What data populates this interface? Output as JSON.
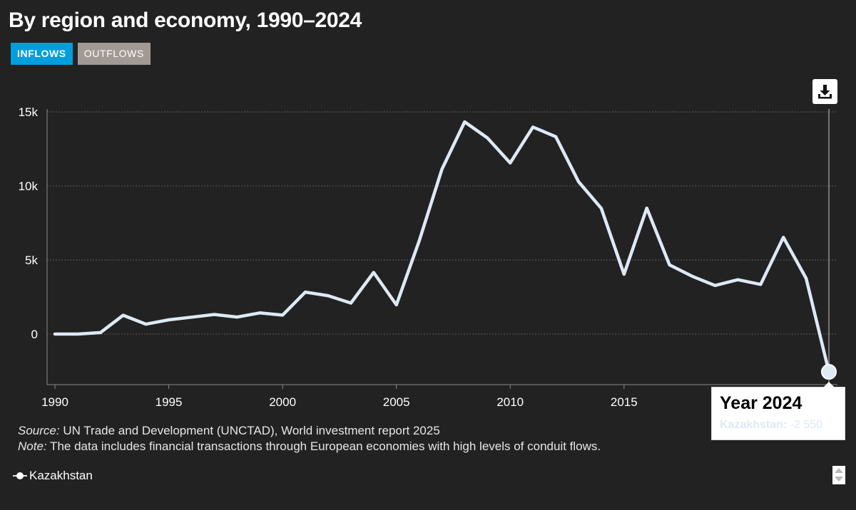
{
  "title": "By region and economy, 1990–2024",
  "tabs": [
    {
      "label": "INFLOWS",
      "active": true
    },
    {
      "label": "OUTFLOWS",
      "active": false
    }
  ],
  "download_icon": "download-icon",
  "chart_data": {
    "type": "line",
    "title": "By region and economy, 1990–2024",
    "xlabel": "",
    "ylabel": "",
    "x": [
      1990,
      1991,
      1992,
      1993,
      1994,
      1995,
      1996,
      1997,
      1998,
      1999,
      2000,
      2001,
      2002,
      2003,
      2004,
      2005,
      2006,
      2007,
      2008,
      2009,
      2010,
      2011,
      2012,
      2013,
      2014,
      2015,
      2016,
      2017,
      2018,
      2019,
      2020,
      2021,
      2022,
      2023,
      2024
    ],
    "series": [
      {
        "name": "Kazakhstan",
        "color": "#dde9f4",
        "values": [
          0,
          0,
          100,
          1270,
          670,
          960,
          1140,
          1320,
          1150,
          1430,
          1280,
          2830,
          2590,
          2090,
          4160,
          1970,
          6280,
          11120,
          14320,
          13240,
          11550,
          13970,
          13320,
          10290,
          8490,
          4040,
          8500,
          4670,
          3900,
          3280,
          3670,
          3350,
          6530,
          3760,
          -2550
        ]
      }
    ],
    "x_ticks": [
      1990,
      1995,
      2000,
      2005,
      2010,
      2015
    ],
    "y_ticks": [
      0,
      5000,
      10000,
      15000
    ],
    "y_tick_labels": [
      "0",
      "5k",
      "10k",
      "15k"
    ],
    "xlim": [
      1989.9,
      2024
    ],
    "ylim": [
      -3500,
      15400
    ],
    "grid": true,
    "legend": "bottom-left"
  },
  "tooltip": {
    "year_label": "Year 2024",
    "series_label": "Kazakhstan:",
    "value_text": "-2 550"
  },
  "source": {
    "lead": "Source:",
    "text": " UN Trade and Development (UNCTAD), World investment report 2025"
  },
  "note": {
    "lead": "Note:",
    "text": " The data includes financial transactions through European economies with high levels of conduit flows."
  },
  "legend": {
    "label": "Kazakhstan"
  }
}
